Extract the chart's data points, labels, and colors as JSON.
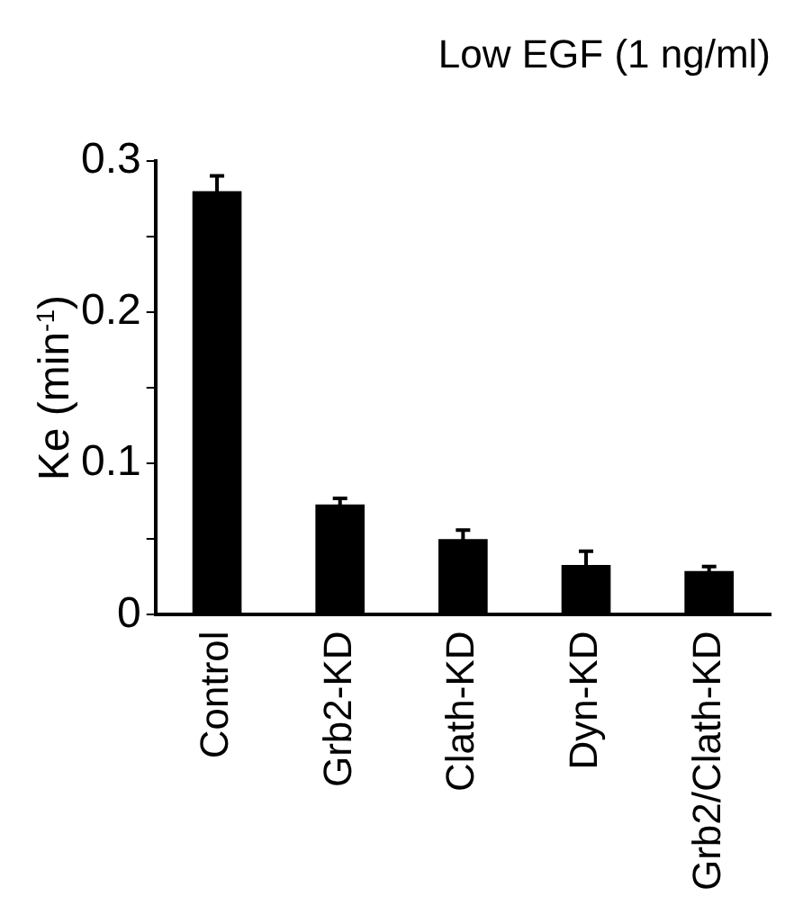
{
  "chart_data": {
    "type": "bar",
    "title": "Low EGF (1 ng/ml)",
    "ylabel": "Ke (min$^{-1}$)",
    "categories": [
      "Control",
      "Grb2-KD",
      "Clath-KD",
      "Dyn-KD",
      "Grb2/Clath-KD"
    ],
    "values": [
      0.28,
      0.073,
      0.05,
      0.033,
      0.029
    ],
    "errors": [
      0.01,
      0.004,
      0.006,
      0.009,
      0.003
    ],
    "color": "#000000",
    "ylim": [
      0,
      0.3
    ],
    "yticks": [
      0,
      {
        "value": 0.05,
        "label": null
      },
      0.1,
      {
        "value": 0.15,
        "label": null
      },
      0.2,
      {
        "value": 0.25,
        "label": null
      },
      0.3
    ],
    "grid": false,
    "legend": false
  }
}
